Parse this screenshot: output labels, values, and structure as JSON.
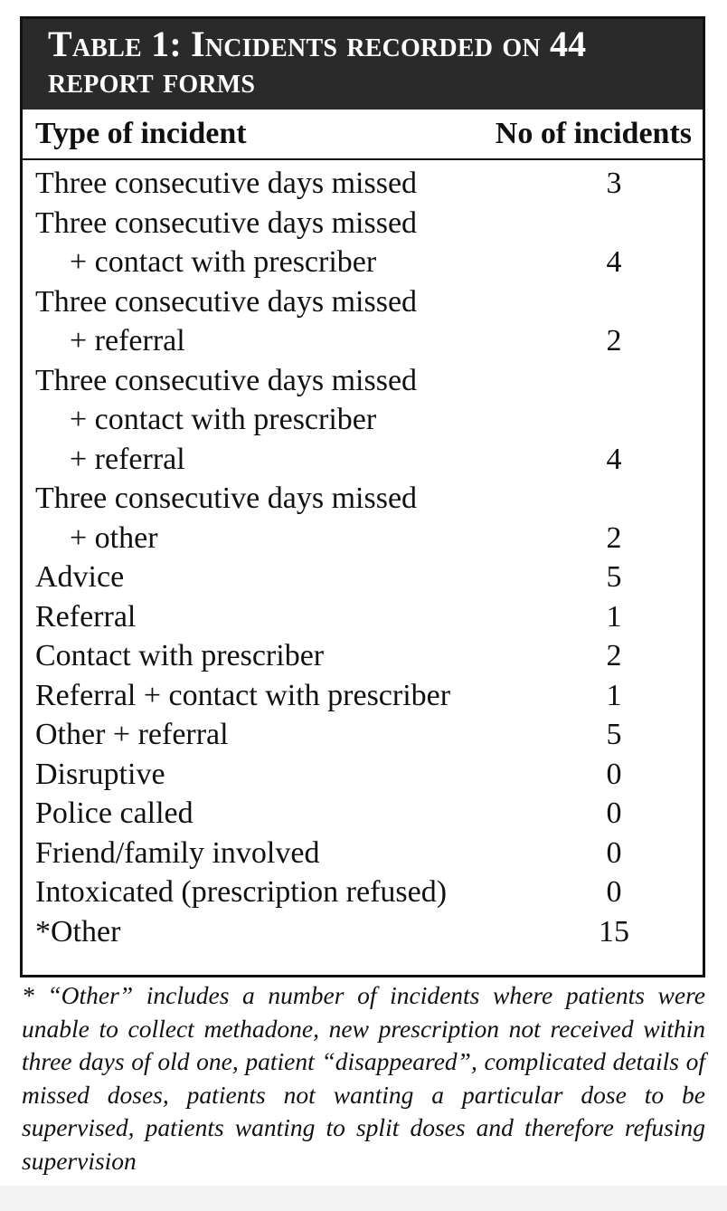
{
  "header": {
    "title": "Table 1: Incidents recorded on 44 report forms"
  },
  "table": {
    "columns": [
      "Type of incident",
      "No of incidents"
    ],
    "rows": [
      {
        "type": [
          "Three consecutive days missed"
        ],
        "count": 3
      },
      {
        "type": [
          "Three consecutive days missed",
          "+ contact with prescriber"
        ],
        "count": 4
      },
      {
        "type": [
          "Three consecutive days missed",
          "+ referral"
        ],
        "count": 2
      },
      {
        "type": [
          "Three consecutive days missed",
          "+ contact with prescriber",
          "+ referral"
        ],
        "count": 4
      },
      {
        "type": [
          "Three consecutive days missed",
          "+ other"
        ],
        "count": 2
      },
      {
        "type": [
          "Advice"
        ],
        "count": 5
      },
      {
        "type": [
          "Referral"
        ],
        "count": 1
      },
      {
        "type": [
          "Contact with prescriber"
        ],
        "count": 2
      },
      {
        "type": [
          "Referral + contact with prescriber"
        ],
        "count": 1
      },
      {
        "type": [
          "Other + referral"
        ],
        "count": 5
      },
      {
        "type": [
          "Disruptive"
        ],
        "count": 0
      },
      {
        "type": [
          "Police called"
        ],
        "count": 0
      },
      {
        "type": [
          "Friend/family involved"
        ],
        "count": 0
      },
      {
        "type": [
          "Intoxicated (prescription refused)"
        ],
        "count": 0
      },
      {
        "type": [
          "*Other"
        ],
        "count": 15
      }
    ]
  },
  "footnote": "* “Other” includes a number of incidents where patients were unable to collect methadone, new prescription not received within three days of old one, patient “disappeared”, complicated details of missed doses, patients not wanting a particular dose to be supervised, patients wanting to split doses and therefore refusing supervision"
}
